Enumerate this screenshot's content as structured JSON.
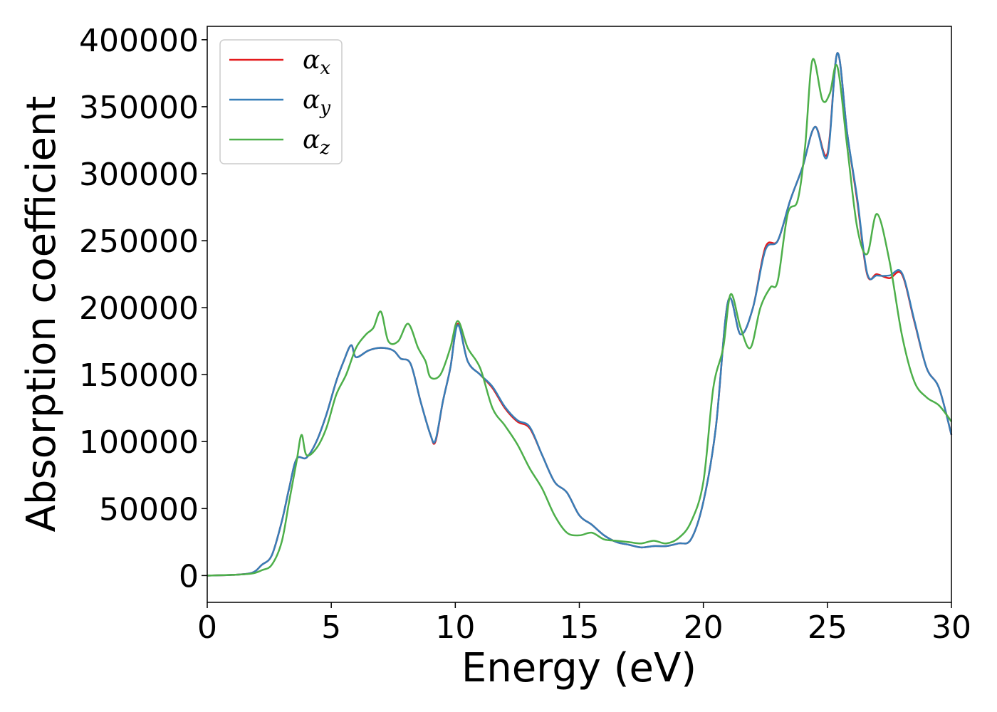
{
  "chart_data": {
    "type": "line",
    "title": "",
    "xlabel": "Energy (eV)",
    "ylabel": "Absorption coefficient",
    "xlim": [
      0,
      30
    ],
    "ylim": [
      -20000,
      410000
    ],
    "xticks": [
      "0",
      "5",
      "10",
      "15",
      "20",
      "25",
      "30"
    ],
    "xtick_values": [
      0,
      5,
      10,
      15,
      20,
      25,
      30
    ],
    "yticks": [
      "0",
      "50000",
      "100000",
      "150000",
      "200000",
      "250000",
      "300000",
      "350000",
      "400000"
    ],
    "ytick_values": [
      0,
      50000,
      100000,
      150000,
      200000,
      250000,
      300000,
      350000,
      400000
    ],
    "grid": false,
    "legend_position": "top-left",
    "series": [
      {
        "name": "α",
        "subscript": "x",
        "color": "#e41a1c",
        "x": [
          0,
          1,
          1.8,
          2.2,
          2.6,
          3.0,
          3.3,
          3.6,
          4.0,
          4.4,
          4.8,
          5.2,
          5.5,
          5.8,
          6.0,
          6.5,
          7.0,
          7.5,
          7.8,
          8.2,
          8.6,
          9.0,
          9.2,
          9.5,
          9.8,
          10.1,
          10.5,
          11.0,
          11.5,
          12.0,
          12.5,
          13.0,
          13.5,
          14.0,
          14.5,
          15.0,
          15.5,
          16.0,
          16.5,
          17.0,
          17.5,
          18.0,
          18.5,
          19.0,
          19.5,
          20.0,
          20.5,
          21.0,
          21.5,
          22.0,
          22.5,
          23.0,
          23.5,
          24.0,
          24.5,
          25.0,
          25.4,
          25.8,
          26.2,
          26.6,
          27.0,
          27.5,
          28.0,
          28.5,
          29.0,
          29.5,
          30.0
        ],
        "y": [
          0,
          500,
          2000,
          8000,
          15000,
          40000,
          65000,
          87000,
          88000,
          100000,
          120000,
          145000,
          160000,
          172000,
          163000,
          168000,
          170000,
          168000,
          162000,
          158000,
          130000,
          105000,
          100000,
          130000,
          155000,
          188000,
          160000,
          150000,
          140000,
          125000,
          115000,
          110000,
          90000,
          70000,
          62000,
          45000,
          38000,
          30000,
          25000,
          23000,
          21000,
          22000,
          22000,
          24000,
          27000,
          55000,
          110000,
          205000,
          180000,
          200000,
          245000,
          250000,
          280000,
          305000,
          335000,
          315000,
          390000,
          330000,
          280000,
          225000,
          225000,
          222000,
          225000,
          190000,
          155000,
          140000,
          105000
        ]
      },
      {
        "name": "α",
        "subscript": "y",
        "color": "#377eb8",
        "x": [
          0,
          1,
          1.8,
          2.2,
          2.6,
          3.0,
          3.3,
          3.6,
          4.0,
          4.4,
          4.8,
          5.2,
          5.5,
          5.8,
          6.0,
          6.5,
          7.0,
          7.5,
          7.8,
          8.2,
          8.6,
          9.0,
          9.2,
          9.5,
          9.8,
          10.1,
          10.5,
          11.0,
          11.5,
          12.0,
          12.5,
          13.0,
          13.5,
          14.0,
          14.5,
          15.0,
          15.5,
          16.0,
          16.5,
          17.0,
          17.5,
          18.0,
          18.5,
          19.0,
          19.5,
          20.0,
          20.5,
          21.0,
          21.5,
          22.0,
          22.5,
          23.0,
          23.5,
          24.0,
          24.5,
          25.0,
          25.4,
          25.8,
          26.2,
          26.6,
          27.0,
          27.5,
          28.0,
          28.5,
          29.0,
          29.5,
          30.0
        ],
        "y": [
          0,
          500,
          2000,
          8000,
          15000,
          40000,
          65000,
          87000,
          88000,
          100000,
          120000,
          145000,
          160000,
          172000,
          163000,
          168000,
          170000,
          168000,
          162000,
          158000,
          130000,
          105000,
          101000,
          130000,
          155000,
          187000,
          160000,
          150000,
          141000,
          126000,
          116000,
          111000,
          90000,
          70000,
          62000,
          45000,
          38000,
          30000,
          25000,
          23000,
          21000,
          22000,
          22000,
          24000,
          27000,
          55000,
          110000,
          205000,
          180000,
          200000,
          243000,
          250000,
          280000,
          305000,
          335000,
          313000,
          390000,
          330000,
          282000,
          226000,
          224000,
          224000,
          226000,
          191000,
          155000,
          140000,
          105000
        ]
      },
      {
        "name": "α",
        "subscript": "z",
        "color": "#4daf4a",
        "x": [
          0,
          1,
          1.8,
          2.2,
          2.6,
          3.0,
          3.3,
          3.6,
          3.8,
          4.0,
          4.4,
          4.8,
          5.2,
          5.6,
          6.0,
          6.4,
          6.7,
          7.0,
          7.3,
          7.7,
          8.1,
          8.5,
          8.8,
          9.0,
          9.4,
          9.8,
          10.1,
          10.5,
          11.0,
          11.5,
          12.0,
          12.5,
          13.0,
          13.5,
          14.0,
          14.5,
          15.0,
          15.5,
          16.0,
          16.5,
          17.0,
          17.5,
          18.0,
          18.5,
          19.0,
          19.5,
          20.0,
          20.4,
          20.8,
          21.1,
          21.5,
          21.9,
          22.3,
          22.7,
          23.0,
          23.4,
          23.8,
          24.1,
          24.4,
          24.8,
          25.1,
          25.4,
          25.8,
          26.2,
          26.6,
          27.0,
          27.5,
          28.0,
          28.5,
          29.0,
          29.5,
          30.0
        ],
        "y": [
          0,
          500,
          1500,
          4000,
          8000,
          25000,
          55000,
          85000,
          105000,
          90000,
          95000,
          110000,
          135000,
          150000,
          170000,
          180000,
          185000,
          197000,
          175000,
          175000,
          188000,
          170000,
          160000,
          148000,
          150000,
          170000,
          190000,
          170000,
          155000,
          125000,
          112000,
          98000,
          80000,
          65000,
          45000,
          32000,
          30000,
          32000,
          27000,
          26000,
          25000,
          24000,
          26000,
          24000,
          28000,
          40000,
          70000,
          140000,
          170000,
          210000,
          185000,
          170000,
          200000,
          215000,
          220000,
          270000,
          280000,
          320000,
          385000,
          355000,
          360000,
          380000,
          320000,
          260000,
          240000,
          270000,
          235000,
          180000,
          145000,
          133000,
          127000,
          115000
        ]
      }
    ]
  }
}
